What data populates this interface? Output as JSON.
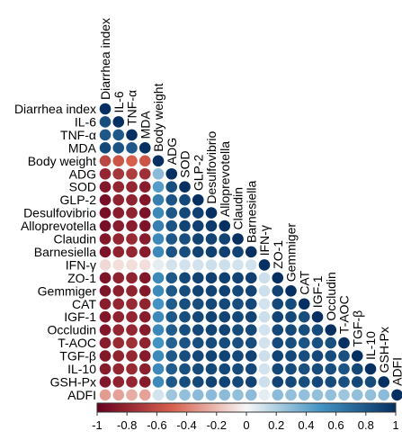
{
  "chart_data": {
    "type": "heatmap",
    "variables": [
      "Diarrhea index",
      "IL-6",
      "TNF-α",
      "MDA",
      "Body weight",
      "ADG",
      "SOD",
      "GLP-2",
      "Desulfovibrio",
      "Alloprevotella",
      "Claudin",
      "Barnesiella",
      "IFN-γ",
      "ZO-1",
      "Gemmiger",
      "CAT",
      "IGF-1",
      "Occludin",
      "T-AOC",
      "TGF-β",
      "IL-10",
      "GSH-Px",
      "ADFI"
    ],
    "matrix": [
      [
        1
      ],
      [
        0.85,
        1
      ],
      [
        0.8,
        0.8,
        1
      ],
      [
        0.88,
        0.82,
        0.8,
        1
      ],
      [
        -0.62,
        -0.55,
        -0.5,
        -0.55,
        1
      ],
      [
        -0.8,
        -0.72,
        -0.68,
        -0.75,
        0.3,
        1
      ],
      [
        -0.88,
        -0.8,
        -0.8,
        -0.85,
        0.45,
        0.85,
        1
      ],
      [
        -0.92,
        -0.82,
        -0.82,
        -0.88,
        0.6,
        0.82,
        0.88,
        1
      ],
      [
        -0.92,
        -0.85,
        -0.82,
        -0.9,
        0.55,
        0.8,
        0.88,
        0.92,
        1
      ],
      [
        -0.92,
        -0.85,
        -0.85,
        -0.9,
        0.6,
        0.82,
        0.9,
        0.92,
        0.95,
        1
      ],
      [
        -0.88,
        -0.8,
        -0.78,
        -0.85,
        0.55,
        0.8,
        0.85,
        0.9,
        0.9,
        0.9,
        1
      ],
      [
        -0.9,
        -0.82,
        -0.8,
        -0.86,
        0.55,
        0.82,
        0.85,
        0.9,
        0.92,
        0.92,
        0.9,
        1
      ],
      [
        -0.1,
        -0.08,
        -0.08,
        -0.08,
        0.05,
        0.1,
        0.1,
        0.1,
        0.12,
        0.12,
        0.1,
        0.1,
        1
      ],
      [
        -0.9,
        -0.82,
        -0.82,
        -0.88,
        0.55,
        0.8,
        0.88,
        0.9,
        0.92,
        0.92,
        0.9,
        0.92,
        0.12,
        1
      ],
      [
        -0.9,
        -0.84,
        -0.82,
        -0.88,
        0.55,
        0.8,
        0.86,
        0.9,
        0.9,
        0.92,
        0.88,
        0.9,
        0.12,
        0.9,
        1
      ],
      [
        -0.85,
        -0.8,
        -0.78,
        -0.82,
        0.5,
        0.78,
        0.85,
        0.85,
        0.88,
        0.88,
        0.85,
        0.88,
        0.1,
        0.88,
        0.86,
        1
      ],
      [
        -0.88,
        -0.82,
        -0.8,
        -0.85,
        0.55,
        0.8,
        0.85,
        0.88,
        0.9,
        0.9,
        0.88,
        0.9,
        0.12,
        0.9,
        0.88,
        0.85,
        1
      ],
      [
        -0.88,
        -0.8,
        -0.8,
        -0.86,
        0.55,
        0.78,
        0.85,
        0.88,
        0.9,
        0.9,
        0.86,
        0.88,
        0.1,
        0.88,
        0.88,
        0.85,
        0.86,
        1
      ],
      [
        -0.85,
        -0.78,
        -0.75,
        -0.82,
        0.5,
        0.75,
        0.82,
        0.85,
        0.86,
        0.86,
        0.84,
        0.85,
        0.1,
        0.86,
        0.85,
        0.82,
        0.84,
        0.84,
        1
      ],
      [
        -0.88,
        -0.82,
        -0.8,
        -0.86,
        0.55,
        0.8,
        0.85,
        0.88,
        0.9,
        0.9,
        0.88,
        0.9,
        0.12,
        0.9,
        0.88,
        0.85,
        0.88,
        0.86,
        0.84,
        1
      ],
      [
        -0.86,
        -0.8,
        -0.78,
        -0.84,
        0.55,
        0.78,
        0.84,
        0.86,
        0.88,
        0.88,
        0.86,
        0.88,
        0.1,
        0.88,
        0.86,
        0.84,
        0.86,
        0.85,
        0.82,
        0.88,
        1
      ],
      [
        -0.88,
        -0.82,
        -0.8,
        -0.86,
        0.55,
        0.8,
        0.85,
        0.88,
        0.9,
        0.9,
        0.88,
        0.9,
        0.12,
        0.9,
        0.88,
        0.85,
        0.88,
        0.86,
        0.84,
        0.88,
        0.86,
        1
      ],
      [
        -0.3,
        -0.28,
        -0.25,
        -0.28,
        0.1,
        0.25,
        0.28,
        0.3,
        0.3,
        0.3,
        0.28,
        0.3,
        0.05,
        0.3,
        0.28,
        0.28,
        0.28,
        0.28,
        0.25,
        0.28,
        0.28,
        0.3,
        1
      ]
    ],
    "colorbar": {
      "min": -1,
      "max": 1,
      "ticks": [
        -1,
        -0.8,
        -0.6,
        -0.4,
        -0.2,
        0,
        0.2,
        0.4,
        0.6,
        0.8,
        1
      ],
      "tick_labels": [
        "-1",
        "-0.8",
        "-0.6",
        "-0.4",
        "-0.2",
        "0",
        "0.2",
        "0.4",
        "0.6",
        "0.8",
        "1"
      ],
      "orientation": "horizontal",
      "placement": "bottom"
    },
    "colors": {
      "negative": "#67001f",
      "neg_mid": "#d6604d",
      "neutral": "#f7f7f7",
      "pos_mid": "#4393c3",
      "positive": "#053061"
    },
    "layout": "lower-triangle"
  }
}
